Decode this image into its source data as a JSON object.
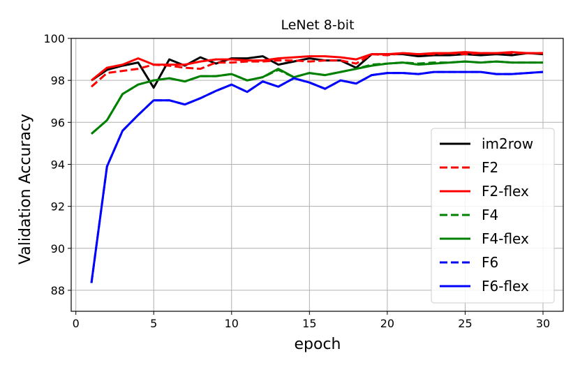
{
  "chart_data": {
    "type": "line",
    "title": "LeNet 8-bit",
    "xlabel": "epoch",
    "ylabel": "Validation Accuracy",
    "xlim": [
      -0.3,
      31.3
    ],
    "ylim": [
      87.0,
      100.0
    ],
    "xticks": [
      0,
      5,
      10,
      15,
      20,
      25,
      30
    ],
    "yticks": [
      88,
      90,
      92,
      94,
      96,
      98,
      100
    ],
    "grid": true,
    "legend_position": "lower-right",
    "x": [
      1,
      2,
      3,
      4,
      5,
      6,
      7,
      8,
      9,
      10,
      11,
      12,
      13,
      14,
      15,
      16,
      17,
      18,
      19,
      20,
      21,
      22,
      23,
      24,
      25,
      26,
      27,
      28,
      29,
      30
    ],
    "series": [
      {
        "name": "im2row",
        "color": "#000000",
        "dash": "solid",
        "values": [
          98.0,
          98.5,
          98.7,
          98.85,
          97.65,
          99.0,
          98.7,
          99.1,
          98.8,
          99.05,
          99.05,
          99.15,
          98.75,
          98.9,
          99.05,
          98.95,
          98.95,
          98.6,
          99.25,
          99.25,
          99.25,
          99.15,
          99.2,
          99.2,
          99.25,
          99.2,
          99.25,
          99.2,
          99.3,
          99.25
        ]
      },
      {
        "name": "F2",
        "color": "#ff0000",
        "dash": "dashed",
        "values": [
          97.7,
          98.35,
          98.45,
          98.55,
          98.75,
          98.7,
          98.6,
          98.55,
          98.85,
          98.85,
          98.9,
          98.9,
          98.95,
          98.95,
          98.9,
          98.95,
          98.95,
          98.8,
          99.25,
          99.2,
          99.3,
          99.25,
          99.25,
          99.3,
          99.25,
          99.3,
          99.3,
          99.3,
          99.3,
          99.3
        ]
      },
      {
        "name": "F2-flex",
        "color": "#ff0000",
        "dash": "solid",
        "values": [
          98.0,
          98.6,
          98.75,
          99.05,
          98.75,
          98.75,
          98.75,
          98.9,
          99.0,
          99.0,
          98.95,
          98.95,
          99.05,
          99.1,
          99.15,
          99.15,
          99.1,
          99.0,
          99.25,
          99.25,
          99.3,
          99.25,
          99.3,
          99.3,
          99.35,
          99.3,
          99.3,
          99.35,
          99.3,
          99.3
        ]
      },
      {
        "name": "F4",
        "color": "#008000",
        "dash": "dashed",
        "values": [
          95.45,
          96.1,
          97.35,
          97.8,
          98.0,
          98.1,
          97.95,
          98.2,
          98.2,
          98.3,
          98.0,
          98.15,
          98.5,
          98.15,
          98.35,
          98.25,
          98.4,
          98.55,
          98.75,
          98.8,
          98.85,
          98.8,
          98.85,
          98.85,
          98.9,
          98.85,
          98.9,
          98.85,
          98.85,
          98.85
        ]
      },
      {
        "name": "F4-flex",
        "color": "#008000",
        "dash": "solid",
        "values": [
          95.45,
          96.1,
          97.35,
          97.8,
          98.0,
          98.1,
          97.95,
          98.2,
          98.2,
          98.3,
          98.0,
          98.15,
          98.55,
          98.15,
          98.35,
          98.25,
          98.4,
          98.55,
          98.7,
          98.8,
          98.85,
          98.75,
          98.8,
          98.85,
          98.9,
          98.85,
          98.9,
          98.85,
          98.85,
          98.85
        ]
      },
      {
        "name": "F6",
        "color": "#0000ff",
        "dash": "dashed",
        "values": [
          88.35,
          93.9,
          95.6,
          96.35,
          97.05,
          97.05,
          96.85,
          97.15,
          97.5,
          97.8,
          97.45,
          97.95,
          97.7,
          98.1,
          97.9,
          97.6,
          98.0,
          97.85,
          98.25,
          98.35,
          98.35,
          98.3,
          98.4,
          98.4,
          98.4,
          98.4,
          98.3,
          98.3,
          98.35,
          98.4
        ]
      },
      {
        "name": "F6-flex",
        "color": "#0000ff",
        "dash": "solid",
        "values": [
          88.35,
          93.9,
          95.6,
          96.35,
          97.05,
          97.05,
          96.85,
          97.15,
          97.5,
          97.8,
          97.45,
          97.95,
          97.7,
          98.1,
          97.9,
          97.6,
          98.0,
          97.85,
          98.25,
          98.35,
          98.35,
          98.3,
          98.4,
          98.4,
          98.4,
          98.4,
          98.3,
          98.3,
          98.35,
          98.4
        ]
      }
    ]
  }
}
